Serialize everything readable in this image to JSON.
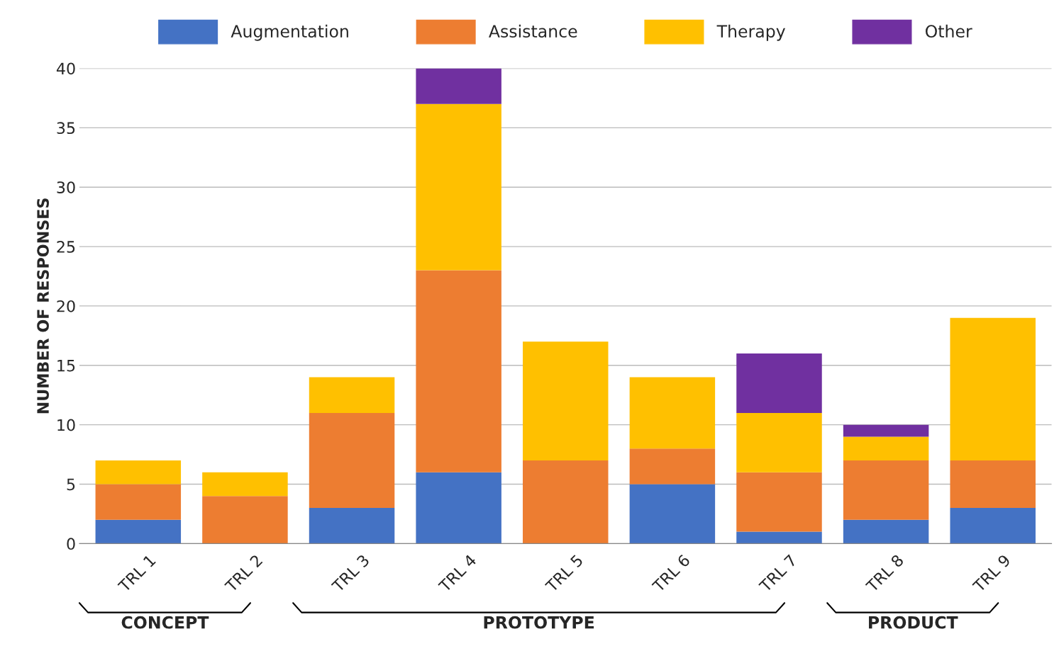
{
  "chart_data": {
    "type": "bar",
    "ylabel": "NUMBER OF RESPONSES",
    "categories": [
      "TRL 1",
      "TRL 2",
      "TRL 3",
      "TRL 4",
      "TRL 5",
      "TRL 6",
      "TRL 7",
      "TRL 8",
      "TRL 9"
    ],
    "stacked": true,
    "series": [
      {
        "name": "Augmentation",
        "color": "#4472c4",
        "values": [
          2,
          0,
          3,
          6,
          0,
          5,
          1,
          2,
          3
        ]
      },
      {
        "name": "Assistance",
        "color": "#ed7d31",
        "values": [
          3,
          4,
          8,
          17,
          7,
          3,
          5,
          5,
          4
        ]
      },
      {
        "name": "Therapy",
        "color": "#ffc000",
        "values": [
          2,
          2,
          3,
          14,
          10,
          6,
          5,
          2,
          12
        ]
      },
      {
        "name": "Other",
        "color": "#7030a0",
        "values": [
          0,
          0,
          0,
          3,
          0,
          0,
          5,
          1,
          0
        ]
      }
    ],
    "ylim": [
      0,
      40
    ],
    "yticks": [
      0,
      5,
      10,
      15,
      20,
      25,
      30,
      35,
      40
    ],
    "grid": "y",
    "legend": "top",
    "annotations": [
      "CONCEPT",
      "PROTOTYPE",
      "PRODUCT"
    ]
  }
}
